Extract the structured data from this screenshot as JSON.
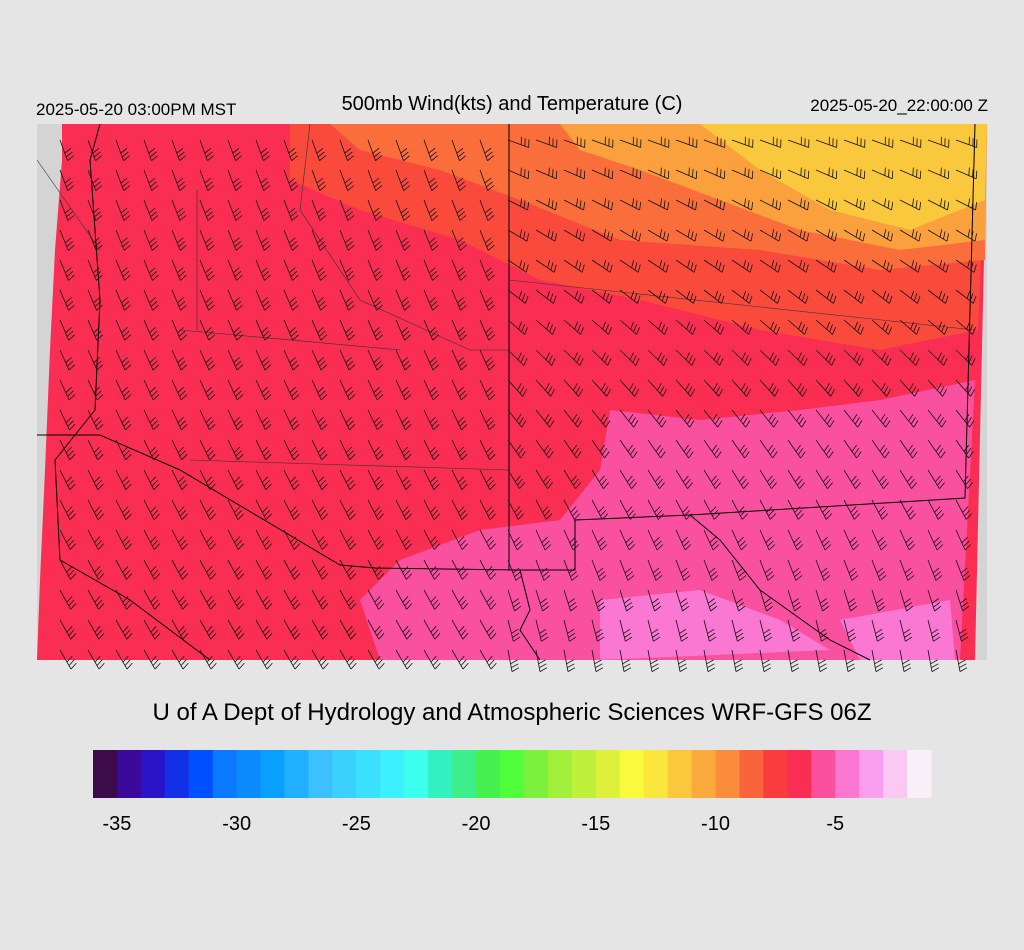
{
  "header": {
    "left": "2025-05-20 03:00PM MST",
    "title": "500mb Wind(kts) and Temperature (C)",
    "right": "2025-05-20_22:00:00 Z"
  },
  "credit": "U of A Dept of Hydrology and Atmospheric Sciences WRF-GFS 06Z",
  "colorbar": {
    "min": -36,
    "max": -1,
    "colors": [
      "#3d0a4a",
      "#3c0a9a",
      "#2a14c8",
      "#1430e6",
      "#0050ff",
      "#0a78ff",
      "#0a8cff",
      "#0aa0ff",
      "#20b0ff",
      "#3cc0ff",
      "#3cd0ff",
      "#3ce0ff",
      "#3cf0ff",
      "#3cffee",
      "#32f0c0",
      "#3cee8c",
      "#46f050",
      "#50ff3c",
      "#7cf03c",
      "#a0f03c",
      "#bef03c",
      "#dcf03c",
      "#fafa3c",
      "#fae63c",
      "#fac83c",
      "#faaa3c",
      "#fa8c3c",
      "#fa643c",
      "#fa3c3c",
      "#fa2d55",
      "#fa509e",
      "#fa78d2",
      "#fa9ef0",
      "#fac8f0",
      "#faf0fa"
    ],
    "ticks": [
      -35,
      -30,
      -25,
      -20,
      -15,
      -10,
      -5
    ]
  }
}
